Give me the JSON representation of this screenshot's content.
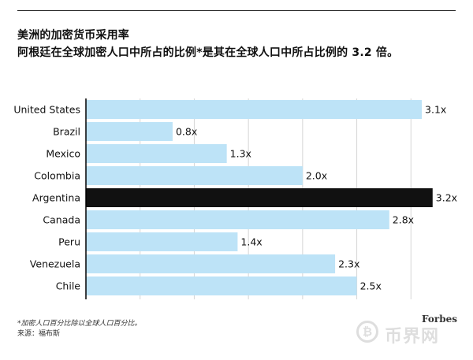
{
  "chart_data": {
    "type": "bar",
    "orientation": "horizontal",
    "title": "美洲的加密货币采用率",
    "subtitle": "阿根廷在全球加密人口中所占的比例*是其在全球人口中所占比例的 3.2 倍。",
    "categories": [
      "United States",
      "Brazil",
      "Mexico",
      "Colombia",
      "Argentina",
      "Canada",
      "Peru",
      "Venezuela",
      "Chile"
    ],
    "values": [
      3.1,
      0.8,
      1.3,
      2.0,
      3.2,
      2.8,
      1.4,
      2.3,
      2.5
    ],
    "value_labels": [
      "3.1x",
      "0.8x",
      "1.3x",
      "2.0x",
      "3.2x",
      "2.8x",
      "1.4x",
      "2.3x",
      "2.5x"
    ],
    "highlight": "Argentina",
    "xlim": [
      0,
      3.5
    ],
    "grid": "vertical",
    "colors": {
      "bar": "#bde3f7",
      "highlight": "#111111",
      "grid": "#d6d6d6",
      "axis": "#000000"
    }
  },
  "footnote": "*加密人口百分比除以全球人口百分比。",
  "source": "来源：福布斯",
  "brand": "Forbes",
  "watermark": {
    "text": "币界网",
    "icon_glyph": "₿",
    "icon": "bitcoin-icon"
  }
}
